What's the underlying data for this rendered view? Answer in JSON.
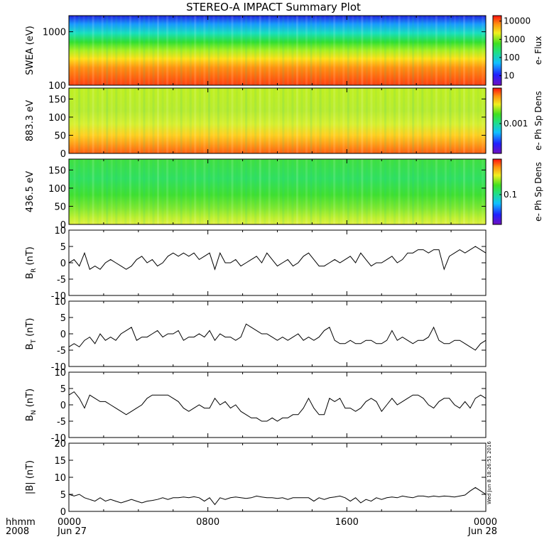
{
  "title": "STEREO-A IMPACT Summary Plot",
  "x_axis": {
    "row1_label": "hhmm",
    "row2_label": "2008",
    "ticks": [
      {
        "hhmm": "0000",
        "date": "Jun 27",
        "t": 0
      },
      {
        "hhmm": "0800",
        "date": "",
        "t": 8
      },
      {
        "hhmm": "1600",
        "date": "",
        "t": 16
      },
      {
        "hhmm": "0000",
        "date": "Jun 28",
        "t": 24
      }
    ],
    "range_hours": [
      0,
      24
    ]
  },
  "timestamp": "Wed Jun 8 18:26:51 2016",
  "chart_data": [
    {
      "type": "heatmap",
      "ylabel": "SWEA (eV)",
      "yscale": "log",
      "ylim": [
        100,
        2000
      ],
      "yticks": [
        100,
        1000
      ],
      "ytick_labels": [
        "100",
        "1000"
      ],
      "colorbar": {
        "label": "e- Flux",
        "scale": "log",
        "ticks": [
          "10000",
          "1000",
          "100",
          "10"
        ],
        "tick_values": [
          10000,
          1000,
          100,
          10
        ],
        "range": [
          3,
          20000
        ]
      },
      "description_bands": [
        {
          "y_frac": 0.0,
          "color": "#2020e0"
        },
        {
          "y_frac": 0.12,
          "color": "#1898ff"
        },
        {
          "y_frac": 0.25,
          "color": "#18e0c0"
        },
        {
          "y_frac": 0.4,
          "color": "#30e030"
        },
        {
          "y_frac": 0.55,
          "color": "#c0f020"
        },
        {
          "y_frac": 0.65,
          "color": "#ffe018"
        },
        {
          "y_frac": 0.8,
          "color": "#ff8010"
        },
        {
          "y_frac": 1.0,
          "color": "#ff4010"
        }
      ]
    },
    {
      "type": "heatmap",
      "ylabel": "883.3 eV",
      "ylim": [
        0,
        180
      ],
      "yticks": [
        0,
        50,
        100,
        150
      ],
      "colorbar": {
        "label": "e- Ph Sp Dens",
        "scale": "log",
        "ticks": [
          "0.001"
        ],
        "tick_values": [
          0.001
        ]
      }
    },
    {
      "type": "heatmap",
      "ylabel": "436.5 eV",
      "ylim": [
        0,
        180
      ],
      "yticks": [
        0,
        50,
        100,
        150
      ],
      "colorbar": {
        "label": "e- Ph Sp Dens",
        "scale": "log",
        "ticks": [
          "0.1"
        ],
        "tick_values": [
          0.1
        ]
      }
    },
    {
      "type": "line",
      "ylabel": "B",
      "ylabel_sub": "R",
      "ylabel_unit": "(nT)",
      "ylim": [
        -10,
        10
      ],
      "yticks": [
        -10,
        -5,
        0,
        5,
        10
      ],
      "x": [
        0,
        0.3,
        0.6,
        0.9,
        1.2,
        1.5,
        1.8,
        2.1,
        2.4,
        2.7,
        3.0,
        3.3,
        3.6,
        3.9,
        4.2,
        4.5,
        4.8,
        5.1,
        5.4,
        5.7,
        6.0,
        6.3,
        6.6,
        6.9,
        7.2,
        7.5,
        7.8,
        8.1,
        8.4,
        8.7,
        9.0,
        9.3,
        9.6,
        9.9,
        10.2,
        10.5,
        10.8,
        11.1,
        11.4,
        11.7,
        12.0,
        12.3,
        12.6,
        12.9,
        13.2,
        13.5,
        13.8,
        14.1,
        14.4,
        14.7,
        15.0,
        15.3,
        15.6,
        15.9,
        16.2,
        16.5,
        16.8,
        17.1,
        17.4,
        17.7,
        18.0,
        18.3,
        18.6,
        18.9,
        19.2,
        19.5,
        19.8,
        20.1,
        20.4,
        20.7,
        21.0,
        21.3,
        21.6,
        21.9,
        22.2,
        22.5,
        22.8,
        23.1,
        23.4,
        23.7,
        24.0
      ],
      "values": [
        0,
        1,
        -1,
        3,
        -2,
        -1,
        -2,
        0,
        1,
        0,
        -1,
        -2,
        -1,
        1,
        2,
        0,
        1,
        -1,
        0,
        2,
        3,
        2,
        3,
        2,
        3,
        1,
        2,
        3,
        -2,
        3,
        0,
        0,
        1,
        -1,
        0,
        1,
        2,
        0,
        3,
        1,
        -1,
        0,
        1,
        -1,
        0,
        2,
        3,
        1,
        -1,
        -1,
        0,
        1,
        0,
        1,
        2,
        0,
        3,
        1,
        -1,
        0,
        0,
        1,
        2,
        0,
        1,
        3,
        3,
        4,
        4,
        3,
        4,
        4,
        -2,
        2,
        3,
        4,
        3,
        4,
        5,
        4,
        3
      ],
      "grid": false
    },
    {
      "type": "line",
      "ylabel": "B",
      "ylabel_sub": "T",
      "ylabel_unit": "(nT)",
      "ylim": [
        -10,
        10
      ],
      "yticks": [
        -10,
        -5,
        0,
        5,
        10
      ],
      "x": [
        0,
        0.3,
        0.6,
        0.9,
        1.2,
        1.5,
        1.8,
        2.1,
        2.4,
        2.7,
        3.0,
        3.3,
        3.6,
        3.9,
        4.2,
        4.5,
        4.8,
        5.1,
        5.4,
        5.7,
        6.0,
        6.3,
        6.6,
        6.9,
        7.2,
        7.5,
        7.8,
        8.1,
        8.4,
        8.7,
        9.0,
        9.3,
        9.6,
        9.9,
        10.2,
        10.5,
        10.8,
        11.1,
        11.4,
        11.7,
        12.0,
        12.3,
        12.6,
        12.9,
        13.2,
        13.5,
        13.8,
        14.1,
        14.4,
        14.7,
        15.0,
        15.3,
        15.6,
        15.9,
        16.2,
        16.5,
        16.8,
        17.1,
        17.4,
        17.7,
        18.0,
        18.3,
        18.6,
        18.9,
        19.2,
        19.5,
        19.8,
        20.1,
        20.4,
        20.7,
        21.0,
        21.3,
        21.6,
        21.9,
        22.2,
        22.5,
        22.8,
        23.1,
        23.4,
        23.7,
        24.0
      ],
      "values": [
        -4,
        -3,
        -4,
        -2,
        -1,
        -3,
        0,
        -2,
        -1,
        -2,
        0,
        1,
        2,
        -2,
        -1,
        -1,
        0,
        1,
        -1,
        0,
        0,
        1,
        -2,
        -1,
        -1,
        0,
        -1,
        1,
        -2,
        0,
        -1,
        -1,
        -2,
        -1,
        3,
        2,
        1,
        0,
        0,
        -1,
        -2,
        -1,
        -2,
        -1,
        0,
        -2,
        -1,
        -2,
        -1,
        1,
        2,
        -2,
        -3,
        -3,
        -2,
        -3,
        -3,
        -2,
        -2,
        -3,
        -3,
        -2,
        1,
        -2,
        -1,
        -2,
        -3,
        -2,
        -2,
        -1,
        2,
        -2,
        -3,
        -3,
        -2,
        -2,
        -3,
        -4,
        -5,
        -3,
        -2
      ],
      "grid": false
    },
    {
      "type": "line",
      "ylabel": "B",
      "ylabel_sub": "N",
      "ylabel_unit": "(nT)",
      "ylim": [
        -10,
        10
      ],
      "yticks": [
        -10,
        -5,
        0,
        5,
        10
      ],
      "x": [
        0,
        0.3,
        0.6,
        0.9,
        1.2,
        1.5,
        1.8,
        2.1,
        2.4,
        2.7,
        3.0,
        3.3,
        3.6,
        3.9,
        4.2,
        4.5,
        4.8,
        5.1,
        5.4,
        5.7,
        6.0,
        6.3,
        6.6,
        6.9,
        7.2,
        7.5,
        7.8,
        8.1,
        8.4,
        8.7,
        9.0,
        9.3,
        9.6,
        9.9,
        10.2,
        10.5,
        10.8,
        11.1,
        11.4,
        11.7,
        12.0,
        12.3,
        12.6,
        12.9,
        13.2,
        13.5,
        13.8,
        14.1,
        14.4,
        14.7,
        15.0,
        15.3,
        15.6,
        15.9,
        16.2,
        16.5,
        16.8,
        17.1,
        17.4,
        17.7,
        18.0,
        18.3,
        18.6,
        18.9,
        19.2,
        19.5,
        19.8,
        20.1,
        20.4,
        20.7,
        21.0,
        21.3,
        21.6,
        21.9,
        22.2,
        22.5,
        22.8,
        23.1,
        23.4,
        23.7,
        24.0
      ],
      "values": [
        3,
        4,
        2,
        -1,
        3,
        2,
        1,
        1,
        0,
        -1,
        -2,
        -3,
        -2,
        -1,
        0,
        2,
        3,
        3,
        3,
        3,
        2,
        1,
        -1,
        -2,
        -1,
        0,
        -1,
        -1,
        2,
        0,
        1,
        -1,
        0,
        -2,
        -3,
        -4,
        -4,
        -5,
        -5,
        -4,
        -5,
        -4,
        -4,
        -3,
        -3,
        -1,
        2,
        -1,
        -3,
        -3,
        2,
        1,
        2,
        -1,
        -1,
        -2,
        -1,
        1,
        2,
        1,
        -2,
        0,
        2,
        0,
        1,
        2,
        3,
        3,
        2,
        0,
        -1,
        1,
        2,
        2,
        0,
        -1,
        1,
        -1,
        2,
        3,
        2
      ],
      "grid": false
    },
    {
      "type": "line",
      "ylabel": "|B|",
      "ylabel_unit": "(nT)",
      "ylim": [
        0,
        20
      ],
      "yticks": [
        0,
        5,
        10,
        15,
        20
      ],
      "x": [
        0,
        0.3,
        0.6,
        0.9,
        1.2,
        1.5,
        1.8,
        2.1,
        2.4,
        2.7,
        3.0,
        3.3,
        3.6,
        3.9,
        4.2,
        4.5,
        4.8,
        5.1,
        5.4,
        5.7,
        6.0,
        6.3,
        6.6,
        6.9,
        7.2,
        7.5,
        7.8,
        8.1,
        8.4,
        8.7,
        9.0,
        9.3,
        9.6,
        9.9,
        10.2,
        10.5,
        10.8,
        11.1,
        11.4,
        11.7,
        12.0,
        12.3,
        12.6,
        12.9,
        13.2,
        13.5,
        13.8,
        14.1,
        14.4,
        14.7,
        15.0,
        15.3,
        15.6,
        15.9,
        16.2,
        16.5,
        16.8,
        17.1,
        17.4,
        17.7,
        18.0,
        18.3,
        18.6,
        18.9,
        19.2,
        19.5,
        19.8,
        20.1,
        20.4,
        20.7,
        21.0,
        21.3,
        21.6,
        21.9,
        22.2,
        22.5,
        22.8,
        23.1,
        23.4,
        23.7,
        24.0
      ],
      "values": [
        5,
        4.5,
        5,
        4,
        3.5,
        3,
        4,
        3,
        3.5,
        3,
        2.5,
        3,
        3.5,
        3,
        2.5,
        3,
        3.2,
        3.5,
        4,
        3.5,
        4,
        4,
        4.2,
        4,
        4.3,
        4,
        3,
        4,
        2,
        4,
        3.5,
        4,
        4.2,
        4,
        3.8,
        4,
        4.5,
        4.2,
        4,
        4,
        3.8,
        4,
        3.5,
        4,
        4,
        4,
        4,
        3,
        4,
        3.5,
        4,
        4.2,
        4.5,
        4,
        3,
        4,
        2.5,
        3.5,
        3,
        4,
        3.5,
        4,
        4.2,
        4,
        4.5,
        4.2,
        4,
        4.5,
        4.5,
        4.2,
        4.5,
        4.3,
        4.5,
        4.4,
        4.2,
        4.5,
        4.8,
        6,
        7,
        6,
        5
      ],
      "grid": false
    }
  ]
}
